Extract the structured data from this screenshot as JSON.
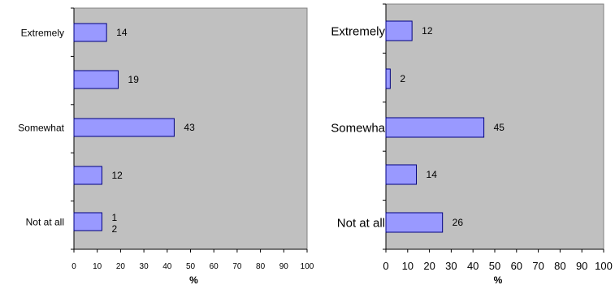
{
  "chart_data": [
    {
      "type": "bar",
      "orientation": "horizontal",
      "categories": [
        "Extremely",
        "",
        "Somewhat",
        "",
        "Not at all"
      ],
      "values": [
        14,
        19,
        43,
        12,
        12
      ],
      "value_labels": [
        "14",
        "19",
        "43",
        "12",
        "1\n2"
      ],
      "xlabel": "%",
      "xlim": [
        0,
        100
      ],
      "xticks": [
        0,
        10,
        20,
        30,
        40,
        50,
        60,
        70,
        80,
        90,
        100
      ],
      "grid": false,
      "plot_background": "#c0c0c0",
      "bar_color": "#9999ff",
      "bar_edge": "#000080"
    },
    {
      "type": "bar",
      "orientation": "horizontal",
      "categories": [
        "Extremely",
        "",
        "Somewha",
        "",
        "Not at all"
      ],
      "values": [
        12,
        2,
        45,
        14,
        26
      ],
      "value_labels": [
        "12",
        "2",
        "45",
        "14",
        "26"
      ],
      "xlabel": "%",
      "xlim": [
        0,
        100
      ],
      "xticks": [
        0,
        10,
        20,
        30,
        40,
        50,
        60,
        70,
        80,
        90,
        100
      ],
      "grid": false,
      "plot_background": "#c0c0c0",
      "bar_color": "#9999ff",
      "bar_edge": "#000080"
    }
  ]
}
